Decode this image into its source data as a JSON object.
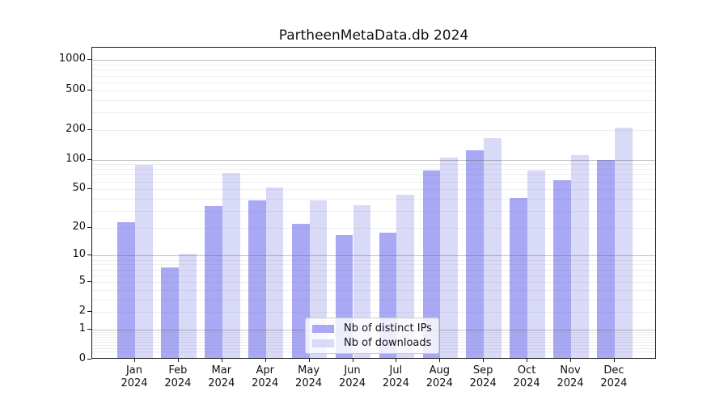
{
  "title": "PartheenMetaData.db 2024",
  "colors": {
    "distinct_ips_bar": "#a8a8f5",
    "downloads_bar": "#d9d9f8",
    "major_gridline": "#c2c2c2",
    "minor_gridline": "#ececec",
    "axis": "#1a1a1a",
    "legend_border": "#cccccc"
  },
  "legend": {
    "items": [
      {
        "label": "Nb of distinct IPs",
        "color": "#a8a8f5"
      },
      {
        "label": "Nb of downloads",
        "color": "#d9d9f8"
      }
    ]
  },
  "chart_data": {
    "type": "bar",
    "title": "PartheenMetaData.db 2024",
    "categories": [
      "Jan 2024",
      "Feb 2024",
      "Mar 2024",
      "Apr 2024",
      "May 2024",
      "Jun 2024",
      "Jul 2024",
      "Aug 2024",
      "Sep 2024",
      "Oct 2024",
      "Nov 2024",
      "Dec 2024"
    ],
    "series": [
      {
        "name": "Nb of distinct IPs",
        "color": "#a8a8f5",
        "values": [
          22,
          7,
          32,
          37,
          21,
          16,
          17,
          75,
          120,
          39,
          60,
          95
        ]
      },
      {
        "name": "Nb of downloads",
        "color": "#d9d9f8",
        "values": [
          85,
          10,
          71,
          50,
          37,
          33,
          42,
          101,
          157,
          75,
          107,
          202
        ]
      }
    ],
    "xlabel": "",
    "ylabel": "",
    "yscale": "log(1+y)",
    "yticks": [
      0,
      1,
      2,
      5,
      10,
      20,
      50,
      100,
      200,
      500,
      1000
    ],
    "ylim": [
      0,
      1335
    ],
    "grid": true,
    "legend_position": "lower center"
  }
}
